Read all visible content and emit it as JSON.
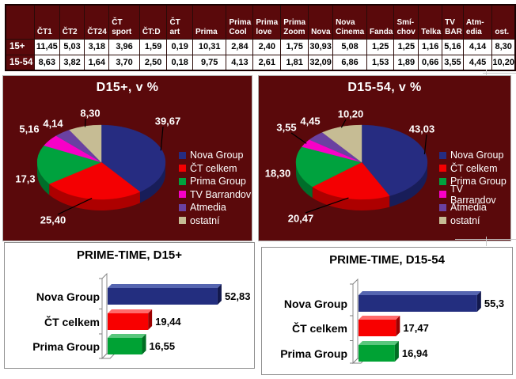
{
  "page": {
    "background": "#ffffff",
    "panel_color": "#5a090b"
  },
  "table": {
    "corner_label": "",
    "row_headers": [
      "15+",
      "15-54"
    ],
    "columns": [
      "ČT1",
      "ČT2",
      "ČT24",
      "ČT\nsport",
      "ČT:D",
      "ČT\nart",
      "Prima",
      "Prima\nCool",
      "Prima\nlove",
      "Prima\nZoom",
      "Nova",
      "Nova\nCinema",
      "Fanda",
      "Smí-\nchov",
      "Telka",
      "TV\nBAR",
      "Atm-\nedia",
      "ost."
    ],
    "rows": [
      [
        "11,45",
        "5,03",
        "3,18",
        "3,96",
        "1,59",
        "0,19",
        "10,31",
        "2,84",
        "2,40",
        "1,75",
        "30,93",
        "5,08",
        "1,25",
        "1,25",
        "1,16",
        "5,16",
        "4,14",
        "8,30"
      ],
      [
        "8,63",
        "3,82",
        "1,64",
        "3,70",
        "2,50",
        "0,18",
        "9,75",
        "4,13",
        "2,61",
        "1,81",
        "32,09",
        "6,86",
        "1,53",
        "1,89",
        "0,66",
        "3,55",
        "4,45",
        "10,20"
      ]
    ]
  },
  "chart_data": [
    {
      "type": "pie",
      "title": "D15+, v %",
      "legend_position": "right",
      "labels": [
        "Nova Group",
        "ČT celkem",
        "Prima Group",
        "TV Barrandov",
        "Atmedia",
        "ostatní"
      ],
      "values": [
        39.67,
        25.4,
        17.3,
        5.16,
        4.14,
        8.3
      ],
      "value_labels": [
        "39,67",
        "25,40",
        "17,3",
        "5,16",
        "4,14",
        "8,30"
      ],
      "colors": [
        "#262c81",
        "#f40002",
        "#00a23e",
        "#f800c7",
        "#6a41a1",
        "#c6bc94"
      ],
      "side_colors": [
        "#181d59",
        "#ad0000",
        "#006e2a",
        "#ad008a",
        "#492d72",
        "#8d8465"
      ]
    },
    {
      "type": "pie",
      "title": "D15-54, v %",
      "legend_position": "right",
      "labels": [
        "Nova Group",
        "ČT celkem",
        "Prima Group",
        "TV Barrandov",
        "Atmedia",
        "ostatní"
      ],
      "values": [
        43.03,
        20.47,
        18.3,
        3.55,
        4.45,
        10.2
      ],
      "value_labels": [
        "43,03",
        "20,47",
        "18,30",
        "3,55",
        "4,45",
        "10,20"
      ],
      "colors": [
        "#262c81",
        "#f40002",
        "#00a23e",
        "#f800c7",
        "#6a41a1",
        "#c6bc94"
      ],
      "side_colors": [
        "#181d59",
        "#ad0000",
        "#006e2a",
        "#ad008a",
        "#492d72",
        "#8d8465"
      ]
    },
    {
      "type": "bar",
      "title": "PRIME-TIME, D15+",
      "orientation": "horizontal",
      "categories": [
        "Nova Group",
        "ČT celkem",
        "Prima Group"
      ],
      "values": [
        52.83,
        19.44,
        16.55
      ],
      "value_labels": [
        "52,83",
        "19,44",
        "16,55"
      ],
      "colors": [
        {
          "main": "#232e7f",
          "light": "#5565b0",
          "dark": "#13194d"
        },
        {
          "main": "#f80000",
          "light": "#ff6a6a",
          "dark": "#9d0000"
        },
        {
          "main": "#00a234",
          "light": "#59c77d",
          "dark": "#006e23"
        }
      ]
    },
    {
      "type": "bar",
      "title": "PRIME-TIME, D15-54",
      "orientation": "horizontal",
      "categories": [
        "Nova Group",
        "ČT celkem",
        "Prima Group"
      ],
      "values": [
        55.3,
        17.47,
        16.94
      ],
      "value_labels": [
        "55,3",
        "17,47",
        "16,94"
      ],
      "colors": [
        {
          "main": "#232e7f",
          "light": "#5565b0",
          "dark": "#13194d"
        },
        {
          "main": "#f80000",
          "light": "#ff6a6a",
          "dark": "#9d0000"
        },
        {
          "main": "#00a234",
          "light": "#59c77d",
          "dark": "#006e23"
        }
      ]
    }
  ]
}
